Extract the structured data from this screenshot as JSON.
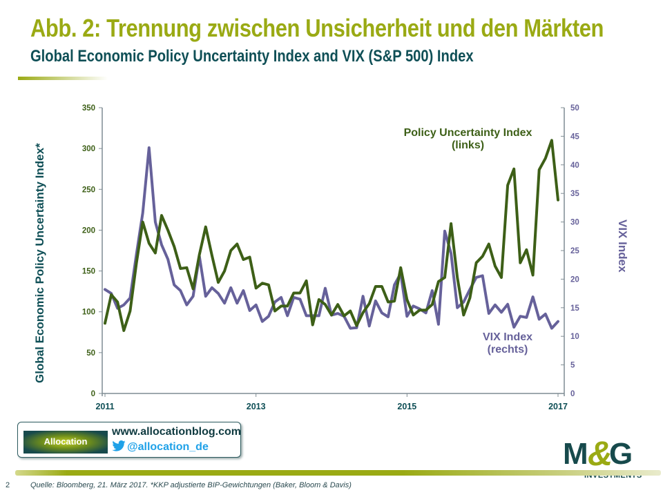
{
  "header": {
    "title": "Abb. 2: Trennung zwischen Unsicherheit und den Märkten",
    "subtitle": "Global Economic Policy Uncertainty Index and VIX (S&P 500) Index"
  },
  "chart_data": {
    "type": "line",
    "title": "Global Economic Policy Uncertainty Index and VIX (S&P 500) Index",
    "xlabel": "",
    "ylabel": "Global Economic Policy Uncertainty Index*",
    "y2label": "VIX Index",
    "x_ticks": [
      "2011",
      "2013",
      "2015",
      "2017"
    ],
    "x_range": [
      "2011-01",
      "2017-01"
    ],
    "ylim": [
      0,
      350
    ],
    "y_ticks": [
      "0",
      "50",
      "100",
      "150",
      "200",
      "250",
      "300",
      "350"
    ],
    "y2lim": [
      0,
      50
    ],
    "y2_ticks": [
      "0",
      "5",
      "10",
      "15",
      "20",
      "25",
      "30",
      "35",
      "40",
      "45",
      "50"
    ],
    "grid": false,
    "frequency": "monthly",
    "annotations": [
      {
        "text": "Policy Uncertainty Index\n(links)",
        "series": "Policy Uncertainty Index"
      },
      {
        "text": "VIX Index\n(rechts)",
        "series": "VIX Index"
      }
    ],
    "series": [
      {
        "name": "Policy Uncertainty Index",
        "axis": "left",
        "color": "#3d5f17",
        "values": [
          86,
          121,
          112,
          77,
          101,
          160,
          210,
          184,
          172,
          218,
          200,
          180,
          153,
          154,
          128,
          170,
          204,
          169,
          136,
          150,
          175,
          183,
          164,
          167,
          129,
          135,
          133,
          101,
          107,
          107,
          123,
          123,
          138,
          84,
          115,
          109,
          96,
          109,
          95,
          101,
          83,
          99,
          110,
          131,
          131,
          112,
          113,
          154,
          115,
          96,
          102,
          102,
          109,
          137,
          142,
          208,
          142,
          96,
          117,
          160,
          168,
          183,
          156,
          142,
          255,
          275,
          160,
          176,
          145,
          274,
          288,
          310,
          237
        ]
      },
      {
        "name": "VIX Index",
        "axis": "right",
        "color": "#66619a",
        "values": [
          18.2,
          17.5,
          14.9,
          15.5,
          16.7,
          24.4,
          31.6,
          43.0,
          30.0,
          26.0,
          23.5,
          19.0,
          18.0,
          15.5,
          17.0,
          24.0,
          17.0,
          18.5,
          17.5,
          15.8,
          18.5,
          15.8,
          18.0,
          14.5,
          15.5,
          12.6,
          13.5,
          16.0,
          16.8,
          13.6,
          16.8,
          16.5,
          13.6,
          13.6,
          13.6,
          18.4,
          13.7,
          14.0,
          13.5,
          11.4,
          11.5,
          17.0,
          11.8,
          16.2,
          14.1,
          13.4,
          19.0,
          21.0,
          13.5,
          15.3,
          14.8,
          14.1,
          18.0,
          12.1,
          28.4,
          24.5,
          15.0,
          16.0,
          18.2,
          20.3,
          20.6,
          14.0,
          15.5,
          14.2,
          15.6,
          11.6,
          13.5,
          13.3,
          16.9,
          13.0,
          13.9,
          11.4,
          12.6
        ]
      }
    ]
  },
  "axes": {
    "left_label": "Global Economic Policy Uncertainty Index*",
    "right_label": "VIX Index"
  },
  "annotations": {
    "epu_line1": "Policy Uncertainty Index",
    "epu_line2": "(links)",
    "vix_line1": "VIX Index",
    "vix_line2": "(rechts)"
  },
  "blog": {
    "logo_text": "Allocation",
    "url": "www.allocationblog.com",
    "twitter": "@allocation_de"
  },
  "brand": {
    "m": "M",
    "amp": "&",
    "g": "G",
    "sub": "INVESTMENTS"
  },
  "footer": {
    "page": "2",
    "source": "Quelle: Bloomberg, 21. März 2017. *KKP adjustierte BIP-Gewichtungen (Baker, Bloom & Davis)"
  },
  "colors": {
    "title": "#9aaa14",
    "subtitle": "#0f4f56",
    "epu": "#3d5f17",
    "vix": "#66619a",
    "axis": "#7f8c93"
  }
}
